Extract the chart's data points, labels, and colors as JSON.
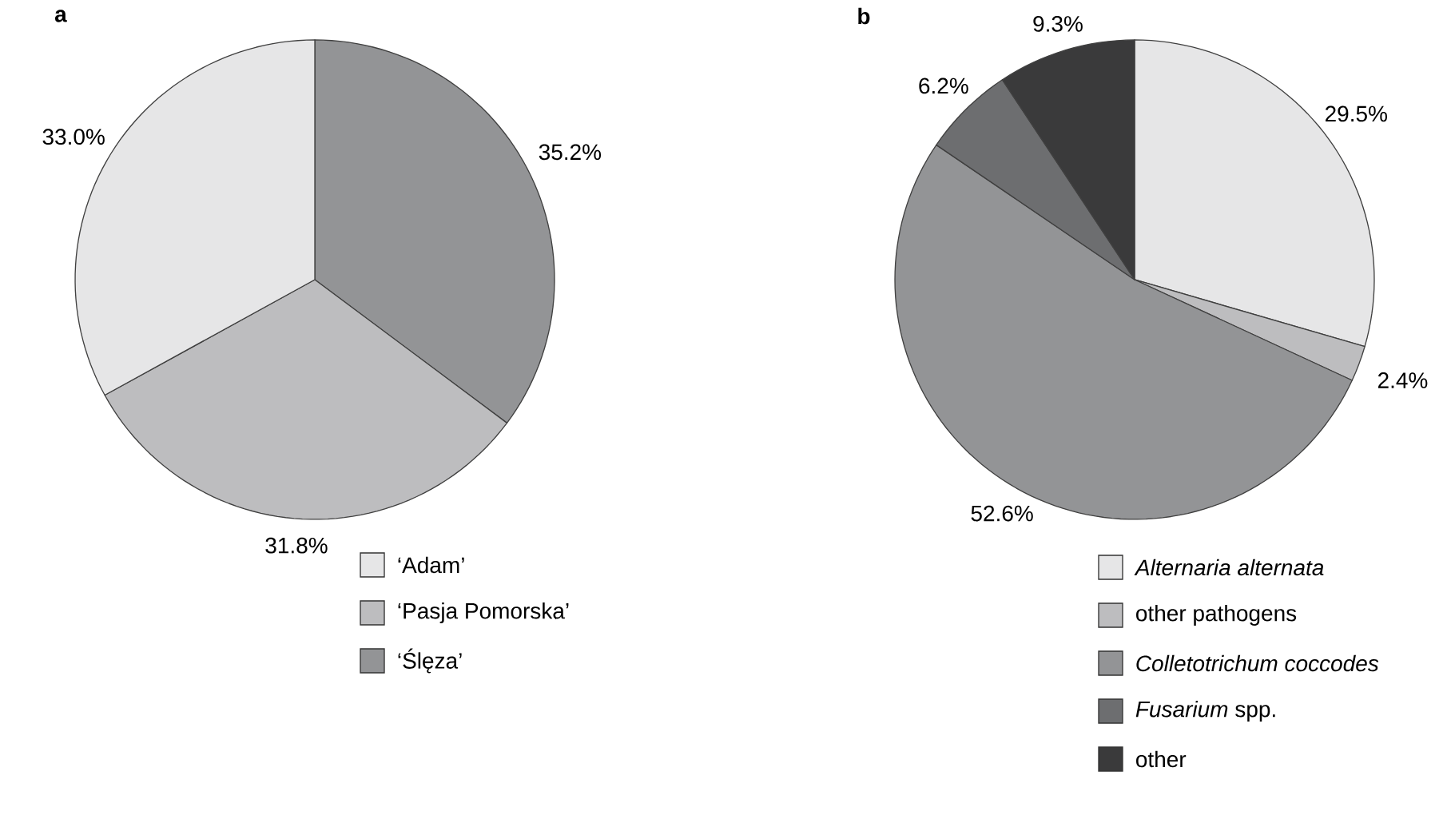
{
  "chart_data": [
    {
      "type": "pie",
      "title": "**a**",
      "categories": [
        "‘Adam’",
        "‘Pasja Pomorska’",
        "‘Ślęza’"
      ],
      "values": [
        33.0,
        31.8,
        35.2
      ],
      "colors": [
        "#e6e6e7",
        "#bdbdbf",
        "#939496"
      ],
      "value_labels": [
        "33.0%",
        "31.8%",
        "35.2%"
      ],
      "legend": "bottom"
    },
    {
      "type": "pie",
      "title": "**b**",
      "categories": [
        "*Alternaria alternata*",
        "other pathogens",
        "*Colletotrichum coccodes*",
        "*Fusarium* spp.",
        "other"
      ],
      "values": [
        29.5,
        2.4,
        52.6,
        6.2,
        9.3
      ],
      "colors": [
        "#e6e6e7",
        "#bdbdbf",
        "#939496",
        "#6d6e70",
        "#3a3a3b"
      ],
      "value_labels": [
        "29.5%",
        "2.4%",
        "52.6%",
        "6.2%",
        "9.3%"
      ],
      "legend": "bottom"
    }
  ]
}
